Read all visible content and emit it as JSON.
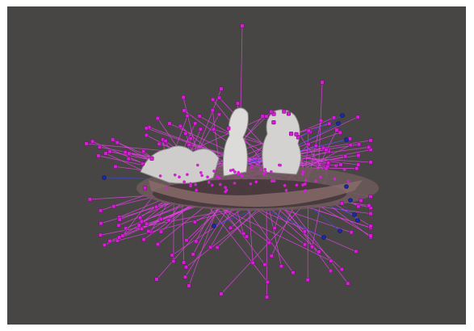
{
  "viewer": {
    "background_color": "#474644",
    "frame_color": "#ffffff",
    "camera_marker_color": "#d61ed6",
    "camera_ray_color": "#e040e0",
    "selected_marker_color": "#1a2aa8",
    "selected_ray_color": "#3a4ad8",
    "mesh_color": "#cfcdcb"
  }
}
